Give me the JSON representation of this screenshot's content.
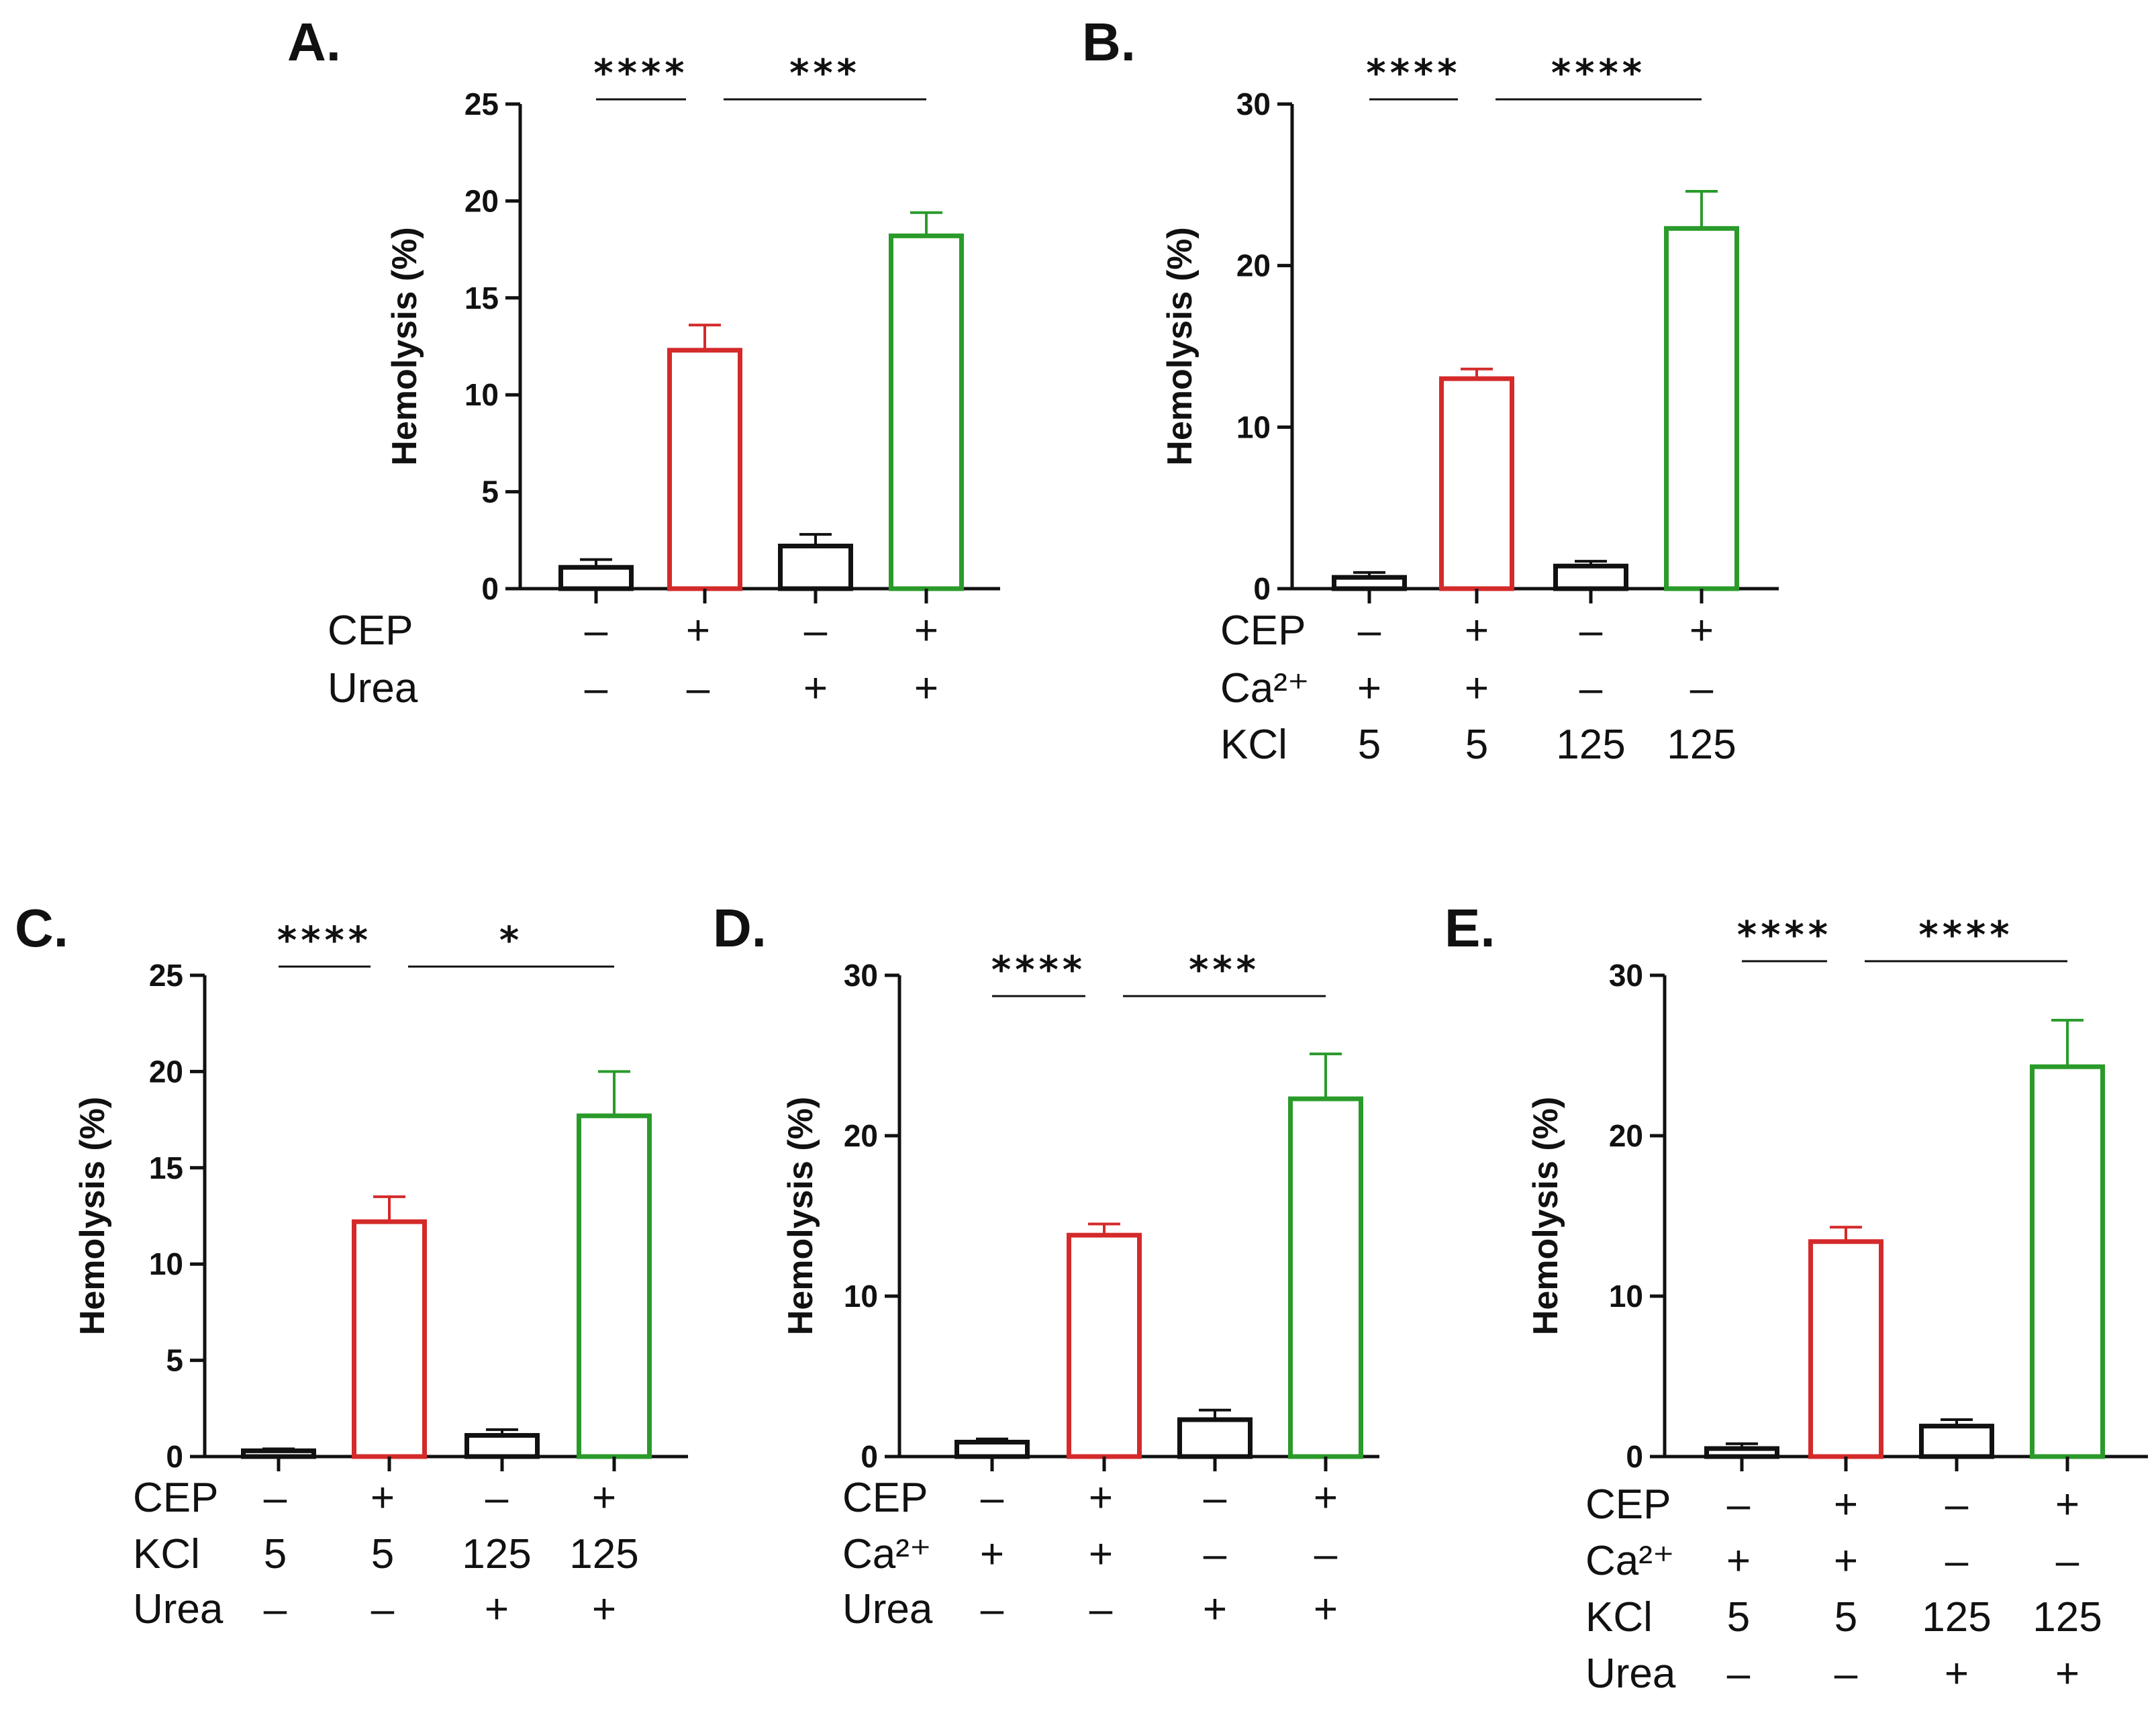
{
  "chart_data": [
    {
      "id": "A",
      "type": "bar",
      "title": "A.",
      "ylabel": "Hemolysis (%)",
      "ylim": [
        0,
        25
      ],
      "yticks": [
        0,
        5,
        10,
        15,
        20,
        25
      ],
      "values": [
        1.1,
        12.3,
        2.2,
        18.2
      ],
      "errors": [
        0.4,
        1.3,
        0.6,
        1.2
      ],
      "bar_colors": [
        "#111111",
        "#d42a2a",
        "#111111",
        "#2a9a2a"
      ],
      "conditions": [
        {
          "label": "CEP",
          "values": [
            "–",
            "+",
            "–",
            "+"
          ]
        },
        {
          "label": "Urea",
          "values": [
            "–",
            "–",
            "+",
            "+"
          ]
        }
      ],
      "significance": [
        {
          "from": 0,
          "to": 1,
          "label": "****"
        },
        {
          "from": 1,
          "to": 3,
          "label": "***"
        }
      ]
    },
    {
      "id": "B",
      "type": "bar",
      "title": "B.",
      "ylabel": "Hemolysis (%)",
      "ylim": [
        0,
        30
      ],
      "yticks": [
        0,
        10,
        20,
        30
      ],
      "values": [
        0.7,
        13.0,
        1.4,
        22.3
      ],
      "errors": [
        0.3,
        0.6,
        0.3,
        2.3
      ],
      "bar_colors": [
        "#111111",
        "#d42a2a",
        "#111111",
        "#2a9a2a"
      ],
      "conditions": [
        {
          "label": "CEP",
          "values": [
            "–",
            "+",
            "–",
            "+"
          ]
        },
        {
          "label": "Ca²⁺",
          "values": [
            "+",
            "+",
            "–",
            "–"
          ]
        },
        {
          "label": "KCl",
          "values": [
            "5",
            "5",
            "125",
            "125"
          ]
        }
      ],
      "significance": [
        {
          "from": 0,
          "to": 1,
          "label": "****"
        },
        {
          "from": 1,
          "to": 3,
          "label": "****"
        }
      ]
    },
    {
      "id": "C",
      "type": "bar",
      "title": "C.",
      "ylabel": "Hemolysis (%)",
      "ylim": [
        0,
        25
      ],
      "yticks": [
        0,
        5,
        10,
        15,
        20,
        25
      ],
      "values": [
        0.3,
        12.2,
        1.1,
        17.7
      ],
      "errors": [
        0.1,
        1.3,
        0.3,
        2.3
      ],
      "bar_colors": [
        "#111111",
        "#d42a2a",
        "#111111",
        "#2a9a2a"
      ],
      "conditions": [
        {
          "label": "CEP",
          "values": [
            "–",
            "+",
            "–",
            "+"
          ]
        },
        {
          "label": "KCl",
          "values": [
            "5",
            "5",
            "125",
            "125"
          ]
        },
        {
          "label": "Urea",
          "values": [
            "–",
            "–",
            "+",
            "+"
          ]
        }
      ],
      "significance": [
        {
          "from": 0,
          "to": 1,
          "label": "****"
        },
        {
          "from": 1,
          "to": 3,
          "label": "*"
        }
      ]
    },
    {
      "id": "D",
      "type": "bar",
      "title": "D.",
      "ylabel": "Hemolysis (%)",
      "ylim": [
        0,
        30
      ],
      "yticks": [
        0,
        10,
        20,
        30
      ],
      "values": [
        0.9,
        13.8,
        2.3,
        22.3
      ],
      "errors": [
        0.2,
        0.7,
        0.6,
        2.8
      ],
      "bar_colors": [
        "#111111",
        "#d42a2a",
        "#111111",
        "#2a9a2a"
      ],
      "conditions": [
        {
          "label": "CEP",
          "values": [
            "–",
            "+",
            "–",
            "+"
          ]
        },
        {
          "label": "Ca²⁺",
          "values": [
            "+",
            "+",
            "–",
            "–"
          ]
        },
        {
          "label": "Urea",
          "values": [
            "–",
            "–",
            "+",
            "+"
          ]
        }
      ],
      "significance": [
        {
          "from": 0,
          "to": 1,
          "label": "****"
        },
        {
          "from": 1,
          "to": 3,
          "label": "***"
        }
      ]
    },
    {
      "id": "E",
      "type": "bar",
      "title": "E.",
      "ylabel": "Hemolysis (%)",
      "ylim": [
        0,
        30
      ],
      "yticks": [
        0,
        10,
        20,
        30
      ],
      "values": [
        0.5,
        13.4,
        1.9,
        24.3
      ],
      "errors": [
        0.3,
        0.9,
        0.4,
        2.9
      ],
      "bar_colors": [
        "#111111",
        "#d42a2a",
        "#111111",
        "#2a9a2a"
      ],
      "conditions": [
        {
          "label": "CEP",
          "values": [
            "–",
            "+",
            "–",
            "+"
          ]
        },
        {
          "label": "Ca²⁺",
          "values": [
            "+",
            "+",
            "–",
            "–"
          ]
        },
        {
          "label": "KCl",
          "values": [
            "5",
            "5",
            "125",
            "125"
          ]
        },
        {
          "label": "Urea",
          "values": [
            "–",
            "–",
            "+",
            "+"
          ]
        }
      ],
      "significance": [
        {
          "from": 0,
          "to": 1,
          "label": "****"
        },
        {
          "from": 1,
          "to": 3,
          "label": "****"
        }
      ]
    }
  ]
}
